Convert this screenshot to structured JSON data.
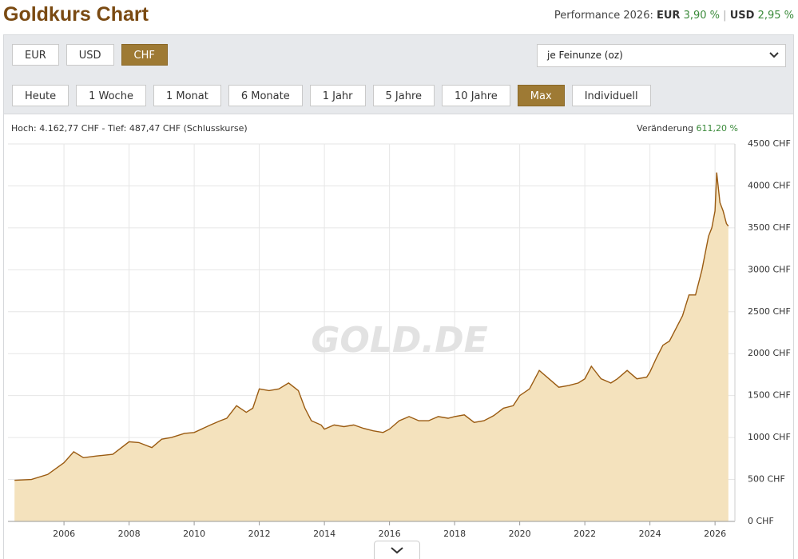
{
  "header": {
    "title": "Goldkurs Chart",
    "performance_label": "Performance 2026:",
    "eur_label": "EUR",
    "eur_value": "3,90 %",
    "separator": "|",
    "usd_label": "USD",
    "usd_value": "2,95 %"
  },
  "currency_buttons": [
    "EUR",
    "USD",
    "CHF"
  ],
  "active_currency": 2,
  "unit_select": "je Feinunze (oz)",
  "range_buttons": [
    "Heute",
    "1 Woche",
    "1 Monat",
    "6 Monate",
    "1 Jahr",
    "5 Jahre",
    "10 Jahre",
    "Max",
    "Individuell"
  ],
  "active_range": 7,
  "chart_data": {
    "type": "area",
    "high_low_note": "Hoch: 4.162,77 CHF - Tief: 487,47 CHF (Schlusskurse)",
    "change_label": "Veränderung",
    "change_value": "611,20 %",
    "watermark": "GOLD.DE",
    "color": "#9a5b12",
    "fill": "#f4e2bd",
    "grid": true,
    "x": [
      2004.48,
      2005.0,
      2005.5,
      2006.0,
      2006.3,
      2006.6,
      2007.0,
      2007.5,
      2008.0,
      2008.3,
      2008.7,
      2009.0,
      2009.3,
      2009.7,
      2010.0,
      2010.5,
      2010.8,
      2011.0,
      2011.3,
      2011.6,
      2011.8,
      2012.0,
      2012.3,
      2012.6,
      2012.9,
      2013.2,
      2013.4,
      2013.6,
      2013.9,
      2014.0,
      2014.3,
      2014.6,
      2014.9,
      2015.2,
      2015.5,
      2015.8,
      2016.0,
      2016.3,
      2016.6,
      2016.9,
      2017.2,
      2017.5,
      2017.8,
      2018.0,
      2018.3,
      2018.6,
      2018.9,
      2019.2,
      2019.5,
      2019.8,
      2020.0,
      2020.3,
      2020.6,
      2020.9,
      2021.2,
      2021.5,
      2021.8,
      2022.0,
      2022.2,
      2022.5,
      2022.8,
      2023.0,
      2023.3,
      2023.6,
      2023.9,
      2024.0,
      2024.2,
      2024.4,
      2024.6,
      2024.8,
      2025.0,
      2025.2,
      2025.4,
      2025.6,
      2025.8,
      2025.9,
      2026.0,
      2026.05,
      2026.15,
      2026.25,
      2026.35,
      2026.41
    ],
    "values": [
      490,
      500,
      560,
      700,
      830,
      760,
      780,
      800,
      950,
      940,
      880,
      980,
      1000,
      1050,
      1060,
      1150,
      1200,
      1230,
      1380,
      1300,
      1350,
      1580,
      1560,
      1580,
      1650,
      1560,
      1350,
      1200,
      1150,
      1100,
      1150,
      1130,
      1150,
      1110,
      1080,
      1060,
      1100,
      1200,
      1250,
      1200,
      1200,
      1250,
      1230,
      1250,
      1270,
      1180,
      1200,
      1260,
      1350,
      1380,
      1500,
      1580,
      1800,
      1700,
      1600,
      1620,
      1650,
      1700,
      1850,
      1700,
      1650,
      1700,
      1800,
      1700,
      1720,
      1780,
      1950,
      2100,
      2150,
      2300,
      2450,
      2700,
      2700,
      3000,
      3400,
      3500,
      3700,
      4160,
      3800,
      3700,
      3550,
      3520
    ],
    "xlim": [
      2004.28,
      2026.61
    ],
    "xticks": [
      2006,
      2008,
      2010,
      2012,
      2014,
      2016,
      2018,
      2020,
      2022,
      2024,
      2026
    ],
    "ylim": [
      0,
      4500
    ],
    "yticks": [
      {
        "value": 0,
        "label": "0 CHF"
      },
      {
        "value": 500,
        "label": "500 CHF"
      },
      {
        "value": 1000,
        "label": "1000 CHF"
      },
      {
        "value": 1500,
        "label": "1500 CHF"
      },
      {
        "value": 2000,
        "label": "2000 CHF"
      },
      {
        "value": 2500,
        "label": "2500 CHF"
      },
      {
        "value": 3000,
        "label": "3000 CHF"
      },
      {
        "value": 3500,
        "label": "3500 CHF"
      },
      {
        "value": 4000,
        "label": "4000 CHF"
      },
      {
        "value": 4500,
        "label": "4500 CHF"
      }
    ]
  }
}
